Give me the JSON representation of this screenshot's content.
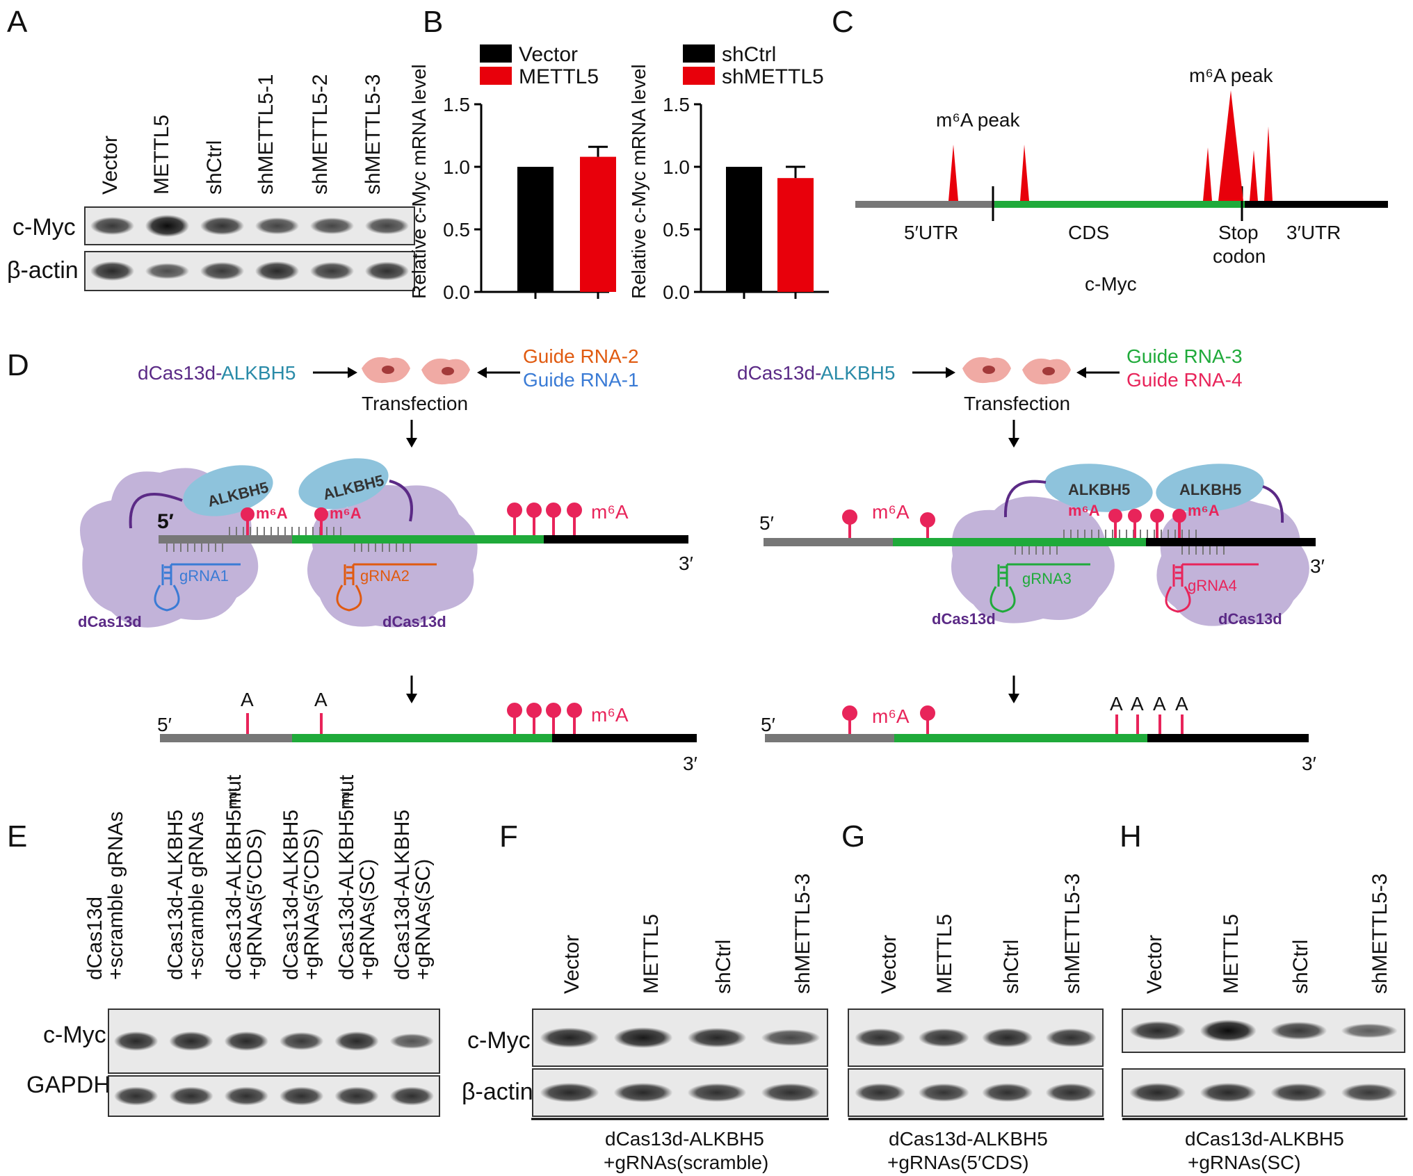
{
  "panel_letters": {
    "A": "A",
    "B": "B",
    "C": "C",
    "D": "D",
    "E": "E",
    "F": "F",
    "G": "G",
    "H": "H"
  },
  "panelA": {
    "lanes": [
      "Vector",
      "METTL5",
      "shCtrl",
      "shMETTL5-1",
      "shMETTL5-2",
      "shMETTL5-3"
    ],
    "rows": [
      "c-Myc",
      "β-actin"
    ],
    "cmyc_intensity": [
      0.7,
      1.0,
      0.72,
      0.62,
      0.6,
      0.62
    ],
    "actin_intensity": [
      0.8,
      0.55,
      0.7,
      0.8,
      0.7,
      0.75
    ]
  },
  "panelB": {
    "chart_data": [
      {
        "type": "bar",
        "categories": [
          "Vector",
          "METTL5"
        ],
        "values": [
          1.0,
          1.08
        ],
        "errors": [
          0,
          0.08
        ],
        "colors": [
          "#000000",
          "#e8000b"
        ],
        "legend": [
          "Vector",
          "METTL5"
        ],
        "ylabel": "Relative c-Myc mRNA level",
        "ylim": [
          0,
          1.5
        ],
        "yticks": [
          "0.0",
          "0.5",
          "1.0",
          "1.5"
        ],
        "grid": false,
        "legend_placement": "top"
      },
      {
        "type": "bar",
        "categories": [
          "shCtrl",
          "shMETTL5"
        ],
        "values": [
          1.0,
          0.91
        ],
        "errors": [
          0,
          0.09
        ],
        "colors": [
          "#000000",
          "#e8000b"
        ],
        "legend": [
          "shCtrl",
          "shMETTL5"
        ],
        "ylabel": "Relative c-Myc mRNA level",
        "ylim": [
          0,
          1.5
        ],
        "yticks": [
          "0.0",
          "0.5",
          "1.0",
          "1.5"
        ],
        "grid": false,
        "legend_placement": "top"
      }
    ]
  },
  "panelC": {
    "peak_label_1": "m⁶A peak",
    "peak_label_2": "m⁶A peak",
    "regions": [
      "5′UTR",
      "CDS",
      "Stop codon",
      "3′UTR"
    ],
    "stop_line1": "Stop",
    "stop_line2": "codon",
    "gene": "c-Myc",
    "colors": {
      "utr5": "#777777",
      "cds": "#1faa3a",
      "utr3": "#000000",
      "peak": "#e8000b"
    }
  },
  "panelD": {
    "left": {
      "construct_a": "dCas13d-",
      "construct_b": "ALKBH5",
      "guide_top": "Guide RNA-2",
      "guide_bottom": "Guide RNA-1",
      "transfection": "Transfection",
      "alkbh5": "ALKBH5",
      "five_prime_bold": "5′",
      "m6a": "m⁶A",
      "grna1": "gRNA1",
      "grna2": "gRNA2",
      "dcas": "dCas13d",
      "five": "5′",
      "three": "3′",
      "a": "A"
    },
    "right": {
      "construct_a": "dCas13d-",
      "construct_b": "ALKBH5",
      "guide_top": "Guide RNA-3",
      "guide_bottom": "Guide RNA-4",
      "transfection": "Transfection",
      "alkbh5": "ALKBH5",
      "m6a": "m⁶A",
      "grna3": "gRNA3",
      "grna4": "gRNA4",
      "dcas": "dCas13d",
      "five": "5′",
      "three": "3′",
      "a": "A"
    },
    "colors": {
      "purple": "#5b2a86",
      "teal": "#2a8ba8",
      "orange": "#e05a10",
      "blue": "#3a7bd5",
      "green": "#1faa3a",
      "pink": "#e8245a",
      "blob": "#c2b3d9",
      "alk": "#8ec3dc"
    }
  },
  "panelE": {
    "lanes": [
      [
        "dCas13d",
        "+scramble gRNAs"
      ],
      [
        "dCas13d-ALKBH5",
        "+scramble gRNAs"
      ],
      [
        "dCas13d-ALKBH5mut",
        "+gRNAs(5′CDS)"
      ],
      [
        "dCas13d-ALKBH5",
        "+gRNAs(5′CDS)"
      ],
      [
        "dCas13d-ALKBH5mut",
        "+gRNAs(SC)"
      ],
      [
        "dCas13d-ALKBH5",
        "+gRNAs(SC)"
      ]
    ],
    "mut": "mut",
    "rows": [
      "c-Myc",
      "GAPDH"
    ],
    "cmyc_intensity": [
      0.8,
      0.8,
      0.8,
      0.7,
      0.8,
      0.5
    ],
    "gapdh_intensity": [
      0.75,
      0.75,
      0.75,
      0.75,
      0.75,
      0.75
    ]
  },
  "panelF": {
    "lanes": [
      "Vector",
      "METTL5",
      "shCtrl",
      "shMETTL5-3"
    ],
    "rows": [
      "c-Myc",
      "β-actin"
    ],
    "caption1": "dCas13d-ALKBH5",
    "caption2": "+gRNAs(scramble)",
    "cmyc_intensity": [
      0.85,
      0.9,
      0.82,
      0.6
    ],
    "actin_intensity": [
      0.8,
      0.8,
      0.75,
      0.75
    ]
  },
  "panelG": {
    "lanes": [
      "Vector",
      "METTL5",
      "shCtrl",
      "shMETTL5-3"
    ],
    "caption1": "dCas13d-ALKBH5",
    "caption2": "+gRNAs(5′CDS)",
    "cmyc_intensity": [
      0.75,
      0.75,
      0.8,
      0.75
    ],
    "actin_intensity": [
      0.75,
      0.72,
      0.75,
      0.75
    ]
  },
  "panelH": {
    "lanes": [
      "Vector",
      "METTL5",
      "shCtrl",
      "shMETTL5-3"
    ],
    "caption1": "dCas13d-ALKBH5",
    "caption2": "+gRNAs(SC)",
    "cmyc_intensity": [
      0.8,
      1.0,
      0.7,
      0.45
    ],
    "actin_intensity": [
      0.8,
      0.8,
      0.75,
      0.7
    ]
  }
}
